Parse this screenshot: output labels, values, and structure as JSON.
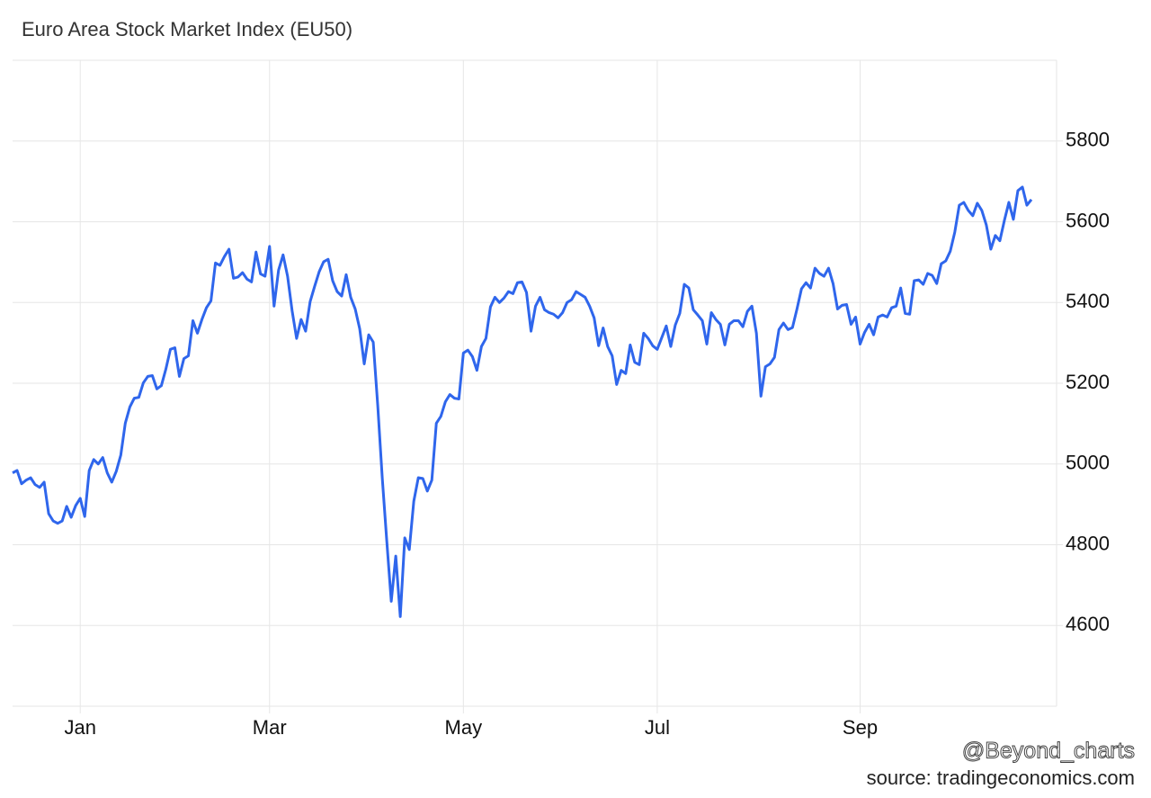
{
  "chart_data": {
    "type": "line",
    "title": "Euro Area Stock Market Index (EU50)",
    "watermark": "@Beyond_charts",
    "source": "source: tradingeconomics.com",
    "color": "#2f66ec",
    "grid": true,
    "ylim": [
      4400,
      6000
    ],
    "yticks": [
      4600,
      4800,
      5000,
      5200,
      5400,
      5600,
      5800
    ],
    "categories": [
      null,
      null,
      null,
      null,
      null,
      null,
      null,
      null,
      null,
      null,
      null,
      null,
      null,
      null,
      null,
      "Jan",
      null,
      null,
      null,
      null,
      null,
      null,
      null,
      null,
      null,
      null,
      null,
      null,
      null,
      null,
      null,
      null,
      null,
      null,
      null,
      null,
      null,
      null,
      null,
      null,
      null,
      null,
      null,
      null,
      null,
      null,
      null,
      null,
      null,
      null,
      null,
      null,
      null,
      null,
      null,
      null,
      null,
      "Mar",
      null,
      null,
      null,
      null,
      null,
      null,
      null,
      null,
      null,
      null,
      null,
      null,
      null,
      null,
      null,
      null,
      null,
      null,
      null,
      null,
      null,
      null,
      null,
      null,
      null,
      null,
      null,
      null,
      null,
      null,
      null,
      null,
      null,
      null,
      null,
      null,
      null,
      null,
      null,
      null,
      null,
      null,
      "May",
      null,
      null,
      null,
      null,
      null,
      null,
      null,
      null,
      null,
      null,
      null,
      null,
      null,
      null,
      null,
      null,
      null,
      null,
      null,
      null,
      null,
      null,
      null,
      null,
      null,
      null,
      null,
      null,
      null,
      null,
      null,
      null,
      null,
      null,
      null,
      null,
      null,
      null,
      null,
      null,
      null,
      null,
      "Jul",
      null,
      null,
      null,
      null,
      null,
      null,
      null,
      null,
      null,
      null,
      null,
      null,
      null,
      null,
      null,
      null,
      null,
      null,
      null,
      null,
      null,
      null,
      null,
      null,
      null,
      null,
      null,
      null,
      null,
      null,
      null,
      null,
      null,
      null,
      null,
      null,
      null,
      null,
      null,
      null,
      null,
      null,
      null,
      null,
      "Sep",
      null,
      null,
      null,
      null,
      null,
      null,
      null,
      null,
      null,
      null,
      null,
      null,
      null,
      null,
      null,
      null,
      null,
      null,
      null,
      null,
      null,
      null,
      null,
      null,
      null,
      null,
      null,
      null,
      null,
      null,
      null,
      null,
      null,
      null,
      null,
      null,
      null,
      null
    ],
    "values": [
      4978,
      4984,
      4951,
      4960,
      4966,
      4949,
      4942,
      4955,
      4877,
      4859,
      4853,
      4859,
      4895,
      4868,
      4897,
      4915,
      4870,
      4984,
      5011,
      5000,
      5016,
      4978,
      4955,
      4982,
      5022,
      5101,
      5141,
      5163,
      5165,
      5201,
      5217,
      5219,
      5186,
      5194,
      5235,
      5284,
      5288,
      5217,
      5261,
      5268,
      5355,
      5324,
      5358,
      5387,
      5404,
      5498,
      5492,
      5514,
      5532,
      5460,
      5463,
      5474,
      5458,
      5451,
      5525,
      5471,
      5465,
      5539,
      5391,
      5480,
      5518,
      5465,
      5380,
      5311,
      5358,
      5329,
      5402,
      5440,
      5476,
      5501,
      5507,
      5454,
      5427,
      5416,
      5469,
      5413,
      5384,
      5335,
      5248,
      5320,
      5302,
      5145,
      4966,
      4810,
      4660,
      4772,
      4622,
      4817,
      4788,
      4908,
      4966,
      4964,
      4933,
      4960,
      5101,
      5118,
      5154,
      5172,
      5163,
      5161,
      5275,
      5282,
      5266,
      5232,
      5291,
      5311,
      5389,
      5413,
      5400,
      5411,
      5427,
      5422,
      5449,
      5451,
      5425,
      5329,
      5391,
      5413,
      5382,
      5375,
      5371,
      5362,
      5375,
      5400,
      5407,
      5427,
      5420,
      5413,
      5391,
      5362,
      5293,
      5337,
      5291,
      5268,
      5197,
      5232,
      5224,
      5295,
      5252,
      5246,
      5324,
      5311,
      5293,
      5284,
      5313,
      5342,
      5291,
      5344,
      5373,
      5445,
      5436,
      5382,
      5369,
      5355,
      5297,
      5375,
      5358,
      5346,
      5295,
      5346,
      5355,
      5355,
      5340,
      5378,
      5391,
      5324,
      5168,
      5241,
      5248,
      5264,
      5333,
      5349,
      5333,
      5338,
      5384,
      5434,
      5449,
      5436,
      5485,
      5472,
      5465,
      5485,
      5447,
      5384,
      5393,
      5395,
      5346,
      5364,
      5297,
      5326,
      5346,
      5320,
      5364,
      5369,
      5364,
      5387,
      5391,
      5436,
      5373,
      5371,
      5454,
      5456,
      5445,
      5472,
      5467,
      5447,
      5496,
      5503,
      5527,
      5574,
      5641,
      5648,
      5628,
      5615,
      5646,
      5628,
      5592,
      5532,
      5566,
      5553,
      5603,
      5648,
      5606,
      5677,
      5686,
      5641,
      5655
    ]
  }
}
